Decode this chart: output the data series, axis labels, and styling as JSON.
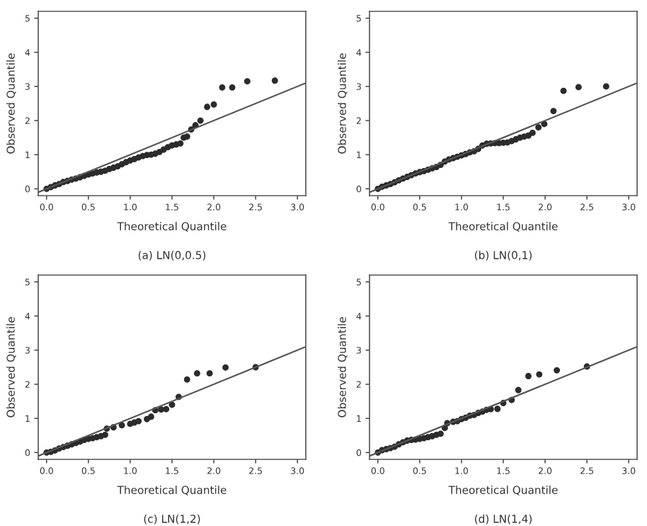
{
  "chart_data": [
    {
      "type": "scatter",
      "title": "(a) LN(0,0.5)",
      "xlabel": "Theoretical Quantile",
      "ylabel": "Observed Quantile",
      "xlim": [
        -0.1,
        3.1
      ],
      "ylim": [
        -0.2,
        5.2
      ],
      "xticks": [
        {
          "value": 0,
          "label": "0.0"
        },
        {
          "value": 0.5,
          "label": "0.5"
        },
        {
          "value": 1,
          "label": "1.0"
        },
        {
          "value": 1.5,
          "label": "1.5"
        },
        {
          "value": 2,
          "label": "2.0"
        },
        {
          "value": 2.5,
          "label": "2.5"
        },
        {
          "value": 3,
          "label": "3.0"
        }
      ],
      "yticks": [
        0,
        1,
        2,
        3,
        4,
        5
      ],
      "grid": false,
      "series": [
        {
          "marker": "circle",
          "color": "#2b2b2b",
          "x": [
            0.0,
            0.05,
            0.1,
            0.15,
            0.2,
            0.25,
            0.3,
            0.35,
            0.4,
            0.45,
            0.5,
            0.55,
            0.6,
            0.65,
            0.7,
            0.75,
            0.8,
            0.85,
            0.9,
            0.95,
            1.0,
            1.05,
            1.1,
            1.15,
            1.2,
            1.25,
            1.3,
            1.35,
            1.4,
            1.45,
            1.5,
            1.55,
            1.6,
            1.64,
            1.68,
            1.73,
            1.78,
            1.84,
            1.92,
            2.0,
            2.1,
            2.22,
            2.4,
            2.73
          ],
          "values": [
            0.0,
            0.05,
            0.1,
            0.14,
            0.2,
            0.23,
            0.27,
            0.3,
            0.34,
            0.38,
            0.42,
            0.45,
            0.48,
            0.5,
            0.53,
            0.58,
            0.62,
            0.66,
            0.72,
            0.78,
            0.83,
            0.87,
            0.92,
            0.96,
            0.99,
            1.0,
            1.03,
            1.08,
            1.15,
            1.22,
            1.27,
            1.3,
            1.33,
            1.5,
            1.53,
            1.74,
            1.86,
            2.0,
            2.4,
            2.47,
            2.97,
            2.97,
            3.15,
            3.17
          ]
        },
        {
          "type": "line",
          "color": "#555555",
          "line_style": "solid",
          "x": [
            -0.1,
            3.1
          ],
          "values": [
            -0.1,
            3.1
          ]
        }
      ]
    },
    {
      "type": "scatter",
      "title": "(b) LN(0,1)",
      "xlabel": "Theoretical Quantile",
      "ylabel": "Observed Quantile",
      "xlim": [
        -0.1,
        3.1
      ],
      "ylim": [
        -0.2,
        5.2
      ],
      "xticks": [
        {
          "value": 0,
          "label": "0.0"
        },
        {
          "value": 0.5,
          "label": "0.5"
        },
        {
          "value": 1,
          "label": "1.0"
        },
        {
          "value": 1.5,
          "label": "1.5"
        },
        {
          "value": 2,
          "label": "2.0"
        },
        {
          "value": 2.5,
          "label": "2.5"
        },
        {
          "value": 3,
          "label": "3.0"
        }
      ],
      "yticks": [
        0,
        1,
        2,
        3,
        4,
        5
      ],
      "grid": false,
      "series": [
        {
          "marker": "circle",
          "color": "#2b2b2b",
          "x": [
            0.0,
            0.05,
            0.1,
            0.15,
            0.2,
            0.25,
            0.3,
            0.35,
            0.4,
            0.45,
            0.5,
            0.55,
            0.6,
            0.65,
            0.7,
            0.75,
            0.8,
            0.85,
            0.9,
            0.95,
            1.0,
            1.05,
            1.1,
            1.15,
            1.2,
            1.25,
            1.3,
            1.35,
            1.4,
            1.45,
            1.5,
            1.55,
            1.6,
            1.65,
            1.7,
            1.75,
            1.8,
            1.85,
            1.92,
            1.99,
            2.1,
            2.22,
            2.4,
            2.73
          ],
          "values": [
            0.0,
            0.06,
            0.1,
            0.14,
            0.19,
            0.25,
            0.3,
            0.35,
            0.4,
            0.45,
            0.49,
            0.52,
            0.56,
            0.6,
            0.64,
            0.7,
            0.8,
            0.86,
            0.9,
            0.94,
            0.98,
            1.02,
            1.07,
            1.1,
            1.17,
            1.27,
            1.32,
            1.33,
            1.34,
            1.34,
            1.35,
            1.36,
            1.4,
            1.45,
            1.5,
            1.53,
            1.56,
            1.64,
            1.8,
            1.9,
            2.28,
            2.87,
            2.98,
            3.0
          ]
        },
        {
          "type": "line",
          "color": "#555555",
          "line_style": "solid",
          "x": [
            -0.1,
            3.1
          ],
          "values": [
            -0.1,
            3.1
          ]
        }
      ]
    },
    {
      "type": "scatter",
      "title": "(c) LN(1,2)",
      "xlabel": "Theoretical Quantile",
      "ylabel": "Observed Quantile",
      "xlim": [
        -0.1,
        3.1
      ],
      "ylim": [
        -0.2,
        5.2
      ],
      "xticks": [
        {
          "value": 0,
          "label": "0.0"
        },
        {
          "value": 0.5,
          "label": "0.5"
        },
        {
          "value": 1,
          "label": "1.0"
        },
        {
          "value": 1.5,
          "label": "1.5"
        },
        {
          "value": 2,
          "label": "2.0"
        },
        {
          "value": 2.5,
          "label": "2.5"
        },
        {
          "value": 3,
          "label": "3.0"
        }
      ],
      "yticks": [
        0,
        1,
        2,
        3,
        4,
        5
      ],
      "grid": false,
      "series": [
        {
          "marker": "circle",
          "color": "#2b2b2b",
          "x": [
            0.0,
            0.05,
            0.1,
            0.15,
            0.2,
            0.25,
            0.3,
            0.35,
            0.4,
            0.45,
            0.5,
            0.55,
            0.6,
            0.65,
            0.7,
            0.72,
            0.8,
            0.9,
            1.0,
            1.05,
            1.1,
            1.2,
            1.25,
            1.3,
            1.37,
            1.43,
            1.5,
            1.58,
            1.68,
            1.8,
            1.95,
            2.14,
            2.5
          ],
          "values": [
            0.0,
            0.02,
            0.06,
            0.12,
            0.16,
            0.2,
            0.24,
            0.28,
            0.32,
            0.37,
            0.4,
            0.42,
            0.45,
            0.48,
            0.52,
            0.7,
            0.74,
            0.8,
            0.84,
            0.88,
            0.92,
            0.98,
            1.05,
            1.24,
            1.26,
            1.27,
            1.4,
            1.63,
            2.14,
            2.32,
            2.32,
            2.49,
            2.5
          ]
        },
        {
          "type": "line",
          "color": "#555555",
          "line_style": "solid",
          "x": [
            -0.1,
            3.1
          ],
          "values": [
            -0.1,
            3.1
          ]
        }
      ]
    },
    {
      "type": "scatter",
      "title": "(d) LN(1,4)",
      "xlabel": "Theoretical Quantile",
      "ylabel": "Observed Quantile",
      "xlim": [
        -0.1,
        3.1
      ],
      "ylim": [
        -0.2,
        5.2
      ],
      "xticks": [
        {
          "value": 0,
          "label": "0.0"
        },
        {
          "value": 0.5,
          "label": "0.5"
        },
        {
          "value": 1,
          "label": "1.0"
        },
        {
          "value": 1.5,
          "label": "1.5"
        },
        {
          "value": 2,
          "label": "2.0"
        },
        {
          "value": 2.5,
          "label": "2.5"
        },
        {
          "value": 3,
          "label": "3.0"
        }
      ],
      "yticks": [
        0,
        1,
        2,
        3,
        4,
        5
      ],
      "grid": false,
      "series": [
        {
          "marker": "circle",
          "color": "#2b2b2b",
          "x": [
            0.0,
            0.05,
            0.1,
            0.15,
            0.2,
            0.25,
            0.3,
            0.35,
            0.4,
            0.45,
            0.5,
            0.55,
            0.6,
            0.65,
            0.7,
            0.75,
            0.8,
            0.83,
            0.9,
            0.95,
            1.0,
            1.05,
            1.1,
            1.15,
            1.2,
            1.25,
            1.3,
            1.35,
            1.43,
            1.5,
            1.6,
            1.68,
            1.8,
            1.93,
            2.14,
            2.5
          ],
          "values": [
            0.0,
            0.07,
            0.1,
            0.13,
            0.17,
            0.24,
            0.3,
            0.35,
            0.37,
            0.38,
            0.4,
            0.42,
            0.45,
            0.48,
            0.52,
            0.55,
            0.72,
            0.86,
            0.9,
            0.92,
            0.98,
            1.02,
            1.08,
            1.1,
            1.16,
            1.2,
            1.25,
            1.27,
            1.28,
            1.45,
            1.54,
            1.83,
            2.24,
            2.29,
            2.41,
            2.52
          ]
        },
        {
          "type": "line",
          "color": "#555555",
          "line_style": "solid",
          "x": [
            -0.1,
            3.1
          ],
          "values": [
            -0.1,
            3.1
          ]
        }
      ]
    }
  ]
}
